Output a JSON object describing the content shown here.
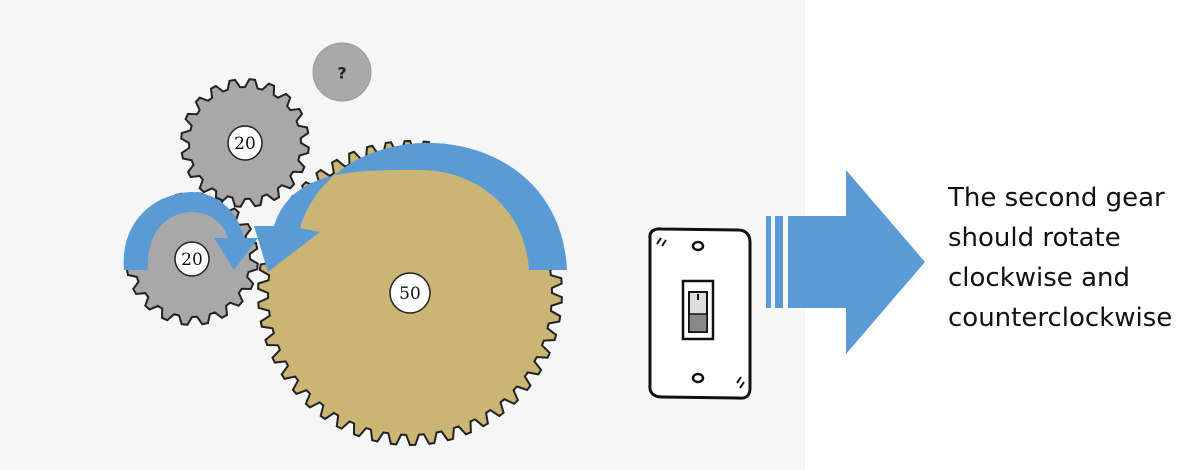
{
  "gears": {
    "top": {
      "label": "20",
      "teeth": 20,
      "color": "#a8a8a8"
    },
    "left": {
      "label": "20",
      "teeth": 20,
      "color": "#a8a8a8"
    },
    "big": {
      "label": "50",
      "teeth": 50,
      "color": "#cbb574"
    },
    "unknown": {
      "label": "?",
      "color": "#a9a9a9"
    }
  },
  "arrows": {
    "color": "#5b9bd5"
  },
  "caption": {
    "lines": [
      "The second gear",
      "should rotate",
      "clockwise and",
      "counterclockwise"
    ]
  }
}
